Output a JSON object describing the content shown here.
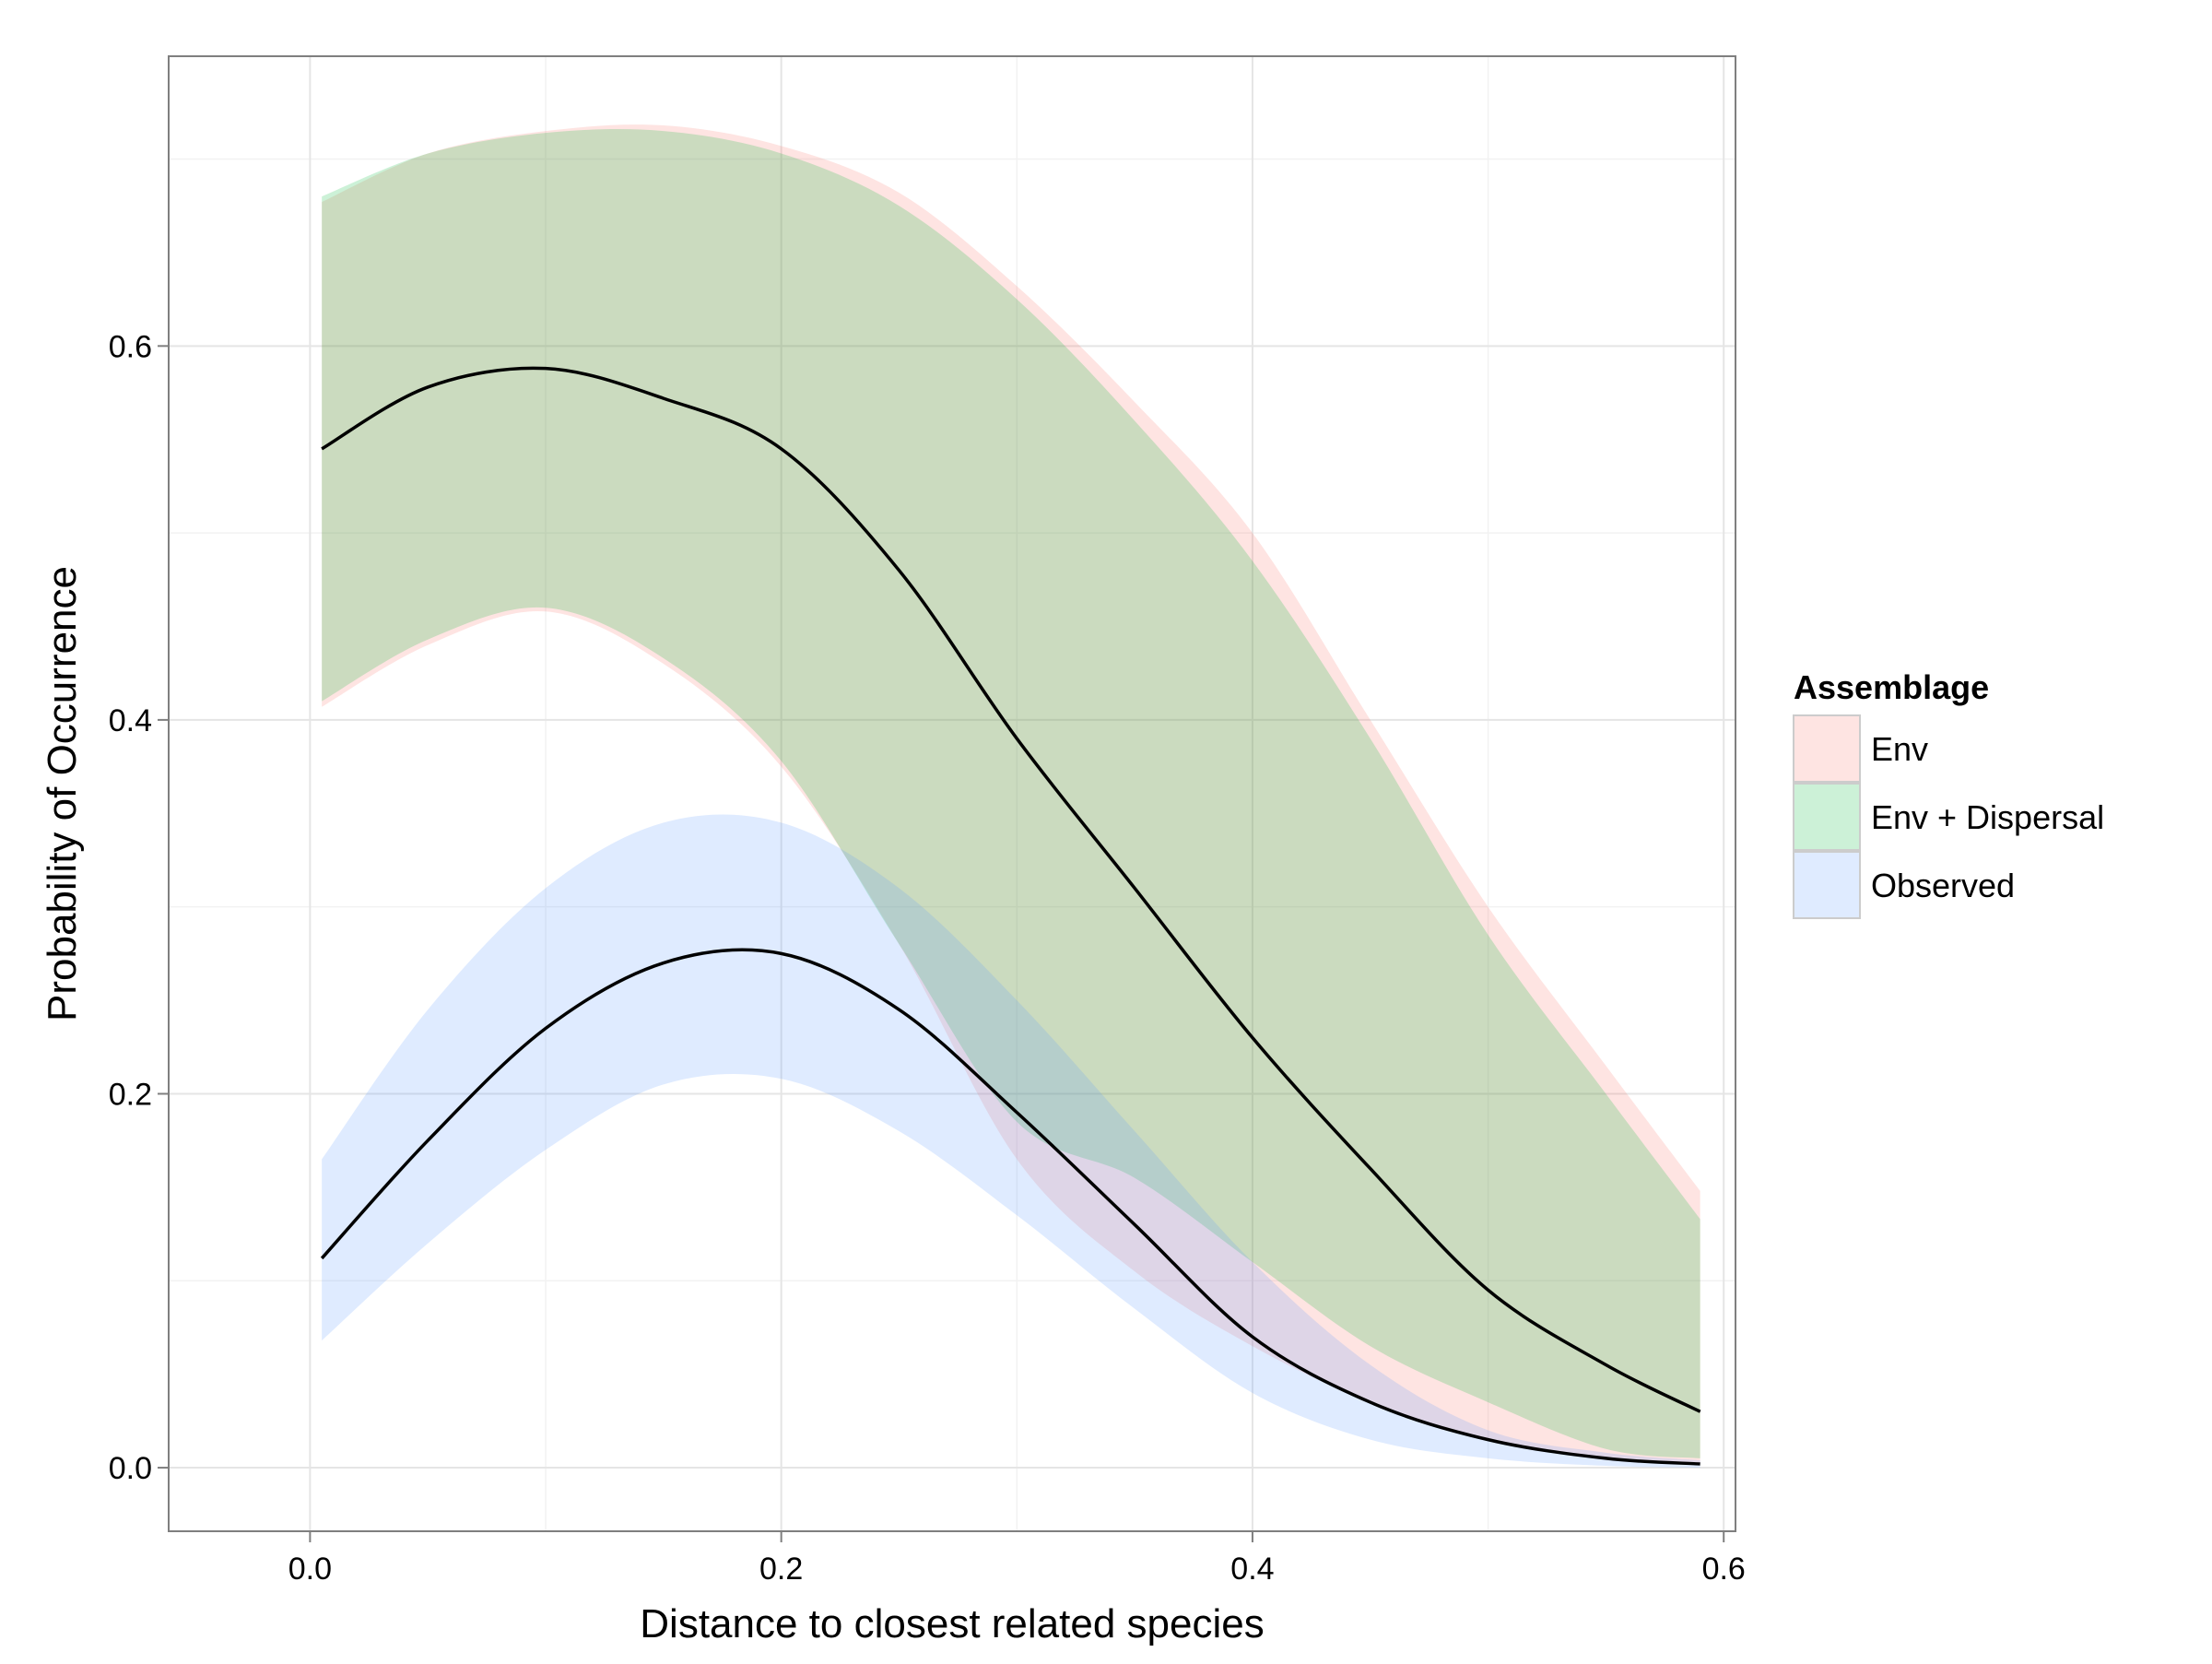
{
  "chart_data": {
    "type": "area",
    "title": "",
    "xlabel": "Distance to closest related species",
    "ylabel": "Probability of Occurrence",
    "xlim": [
      -0.06,
      0.605
    ],
    "ylim": [
      -0.034,
      0.755
    ],
    "x_ticks": [
      0.0,
      0.2,
      0.4,
      0.6
    ],
    "x_tick_labels": [
      "0.0",
      "0.2",
      "0.4",
      "0.6"
    ],
    "y_ticks": [
      0.0,
      0.2,
      0.4,
      0.6
    ],
    "y_tick_labels": [
      "0.0",
      "0.2",
      "0.4",
      "0.6"
    ],
    "x_minor_gridlines": [
      0.1,
      0.3,
      0.5
    ],
    "y_minor_gridlines": [
      0.1,
      0.3,
      0.5,
      0.7
    ],
    "grid": true,
    "legend": {
      "title": "Assemblage",
      "position": "right",
      "entries": [
        "Env",
        "Env + Dispersal",
        "Observed"
      ]
    },
    "x": [
      0.005,
      0.05,
      0.1,
      0.15,
      0.2,
      0.25,
      0.3,
      0.35,
      0.4,
      0.45,
      0.5,
      0.55,
      0.59
    ],
    "series": [
      {
        "name": "Env",
        "color": "#F8766D",
        "fill_opacity": 0.2,
        "fit": [
          0.545,
          0.578,
          0.588,
          0.572,
          0.545,
          0.48,
          0.39,
          0.31,
          0.23,
          0.16,
          0.095,
          0.055,
          0.03
        ],
        "lower": [
          0.407,
          0.44,
          0.458,
          0.43,
          0.375,
          0.28,
          0.165,
          0.105,
          0.065,
          0.035,
          0.015,
          0.005,
          0.002
        ],
        "upper": [
          0.677,
          0.703,
          0.715,
          0.718,
          0.707,
          0.682,
          0.632,
          0.57,
          0.5,
          0.4,
          0.3,
          0.215,
          0.148
        ]
      },
      {
        "name": "Env + Dispersal",
        "color": "#00BA38",
        "fill_opacity": 0.2,
        "fit": [
          0.545,
          0.578,
          0.588,
          0.572,
          0.545,
          0.48,
          0.39,
          0.31,
          0.23,
          0.16,
          0.095,
          0.055,
          0.03
        ],
        "lower": [
          0.41,
          0.443,
          0.46,
          0.433,
          0.378,
          0.28,
          0.185,
          0.155,
          0.11,
          0.065,
          0.035,
          0.01,
          0.005
        ],
        "upper": [
          0.68,
          0.703,
          0.714,
          0.715,
          0.703,
          0.675,
          0.625,
          0.56,
          0.485,
          0.39,
          0.285,
          0.2,
          0.133
        ]
      },
      {
        "name": "Observed",
        "color": "#619CFF",
        "fill_opacity": 0.2,
        "fit": [
          0.112,
          0.175,
          0.235,
          0.27,
          0.275,
          0.245,
          0.19,
          0.13,
          0.07,
          0.035,
          0.015,
          0.005,
          0.002
        ],
        "lower": [
          0.068,
          0.12,
          0.17,
          0.205,
          0.208,
          0.18,
          0.135,
          0.085,
          0.04,
          0.015,
          0.005,
          0.001,
          0.0
        ],
        "upper": [
          0.165,
          0.245,
          0.31,
          0.345,
          0.345,
          0.31,
          0.25,
          0.18,
          0.11,
          0.055,
          0.02,
          0.008,
          0.004
        ]
      }
    ]
  }
}
